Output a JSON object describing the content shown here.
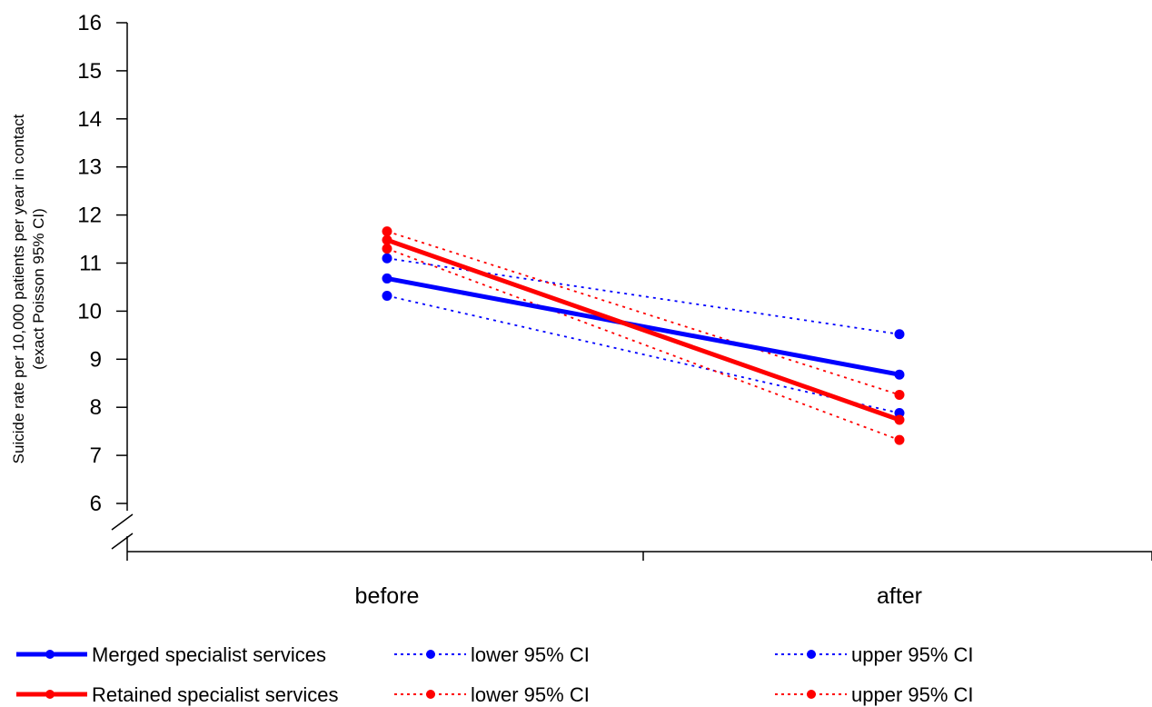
{
  "chart_data": {
    "type": "line",
    "categories": [
      "before",
      "after"
    ],
    "ylabel_line1": "Suicide rate per 10,000 patients per year in contact",
    "ylabel_line2": "(exact Poisson 95% CI)",
    "ylim": [
      5,
      16
    ],
    "yticks": [
      6,
      7,
      8,
      9,
      10,
      11,
      12,
      13,
      14,
      15,
      16
    ],
    "ytick_labels": [
      "6",
      "7",
      "8",
      "9",
      "10",
      "11",
      "12",
      "13",
      "14",
      "15",
      "16"
    ],
    "axis_break": true,
    "grid": false,
    "legend_position": "bottom",
    "series": [
      {
        "name": "Merged specialist services",
        "values": [
          10.68,
          8.68
        ],
        "color": "#0000ff",
        "style": "solid"
      },
      {
        "name": "lower 95% CI",
        "values": [
          10.32,
          7.88
        ],
        "color": "#0000ff",
        "style": "dotted"
      },
      {
        "name": "upper 95% CI",
        "values": [
          11.1,
          9.52
        ],
        "color": "#0000ff",
        "style": "dotted"
      },
      {
        "name": "Retained specialist services",
        "values": [
          11.48,
          7.74
        ],
        "color": "#ff0000",
        "style": "solid"
      },
      {
        "name": "lower 95% CI",
        "values": [
          11.3,
          7.32
        ],
        "color": "#ff0000",
        "style": "dotted"
      },
      {
        "name": "upper 95% CI",
        "values": [
          11.66,
          8.26
        ],
        "color": "#ff0000",
        "style": "dotted"
      }
    ]
  }
}
